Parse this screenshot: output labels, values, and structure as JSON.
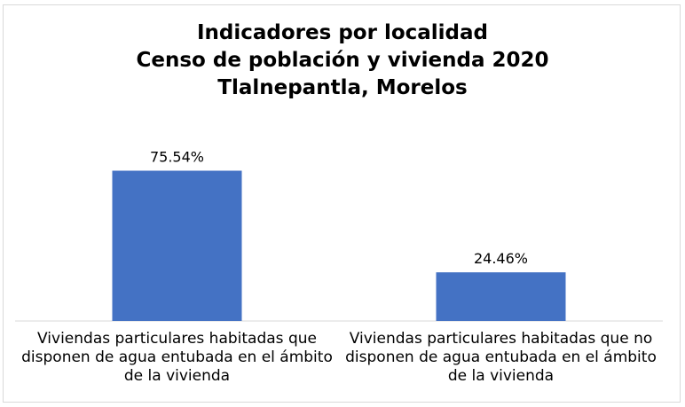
{
  "chart_data": {
    "type": "bar",
    "title_lines": [
      "Indicadores por localidad",
      "Censo de población y vivienda 2020",
      "Tlalnepantla, Morelos"
    ],
    "categories": [
      "Viviendas particulares habitadas que disponen de agua entubada en el ámbito de la vivienda",
      "Viviendas particulares habitadas que no disponen de agua entubada en el ámbito de la vivienda"
    ],
    "category_lines": [
      [
        "Viviendas particulares habitadas que",
        "disponen de agua entubada en el ámbito",
        "de la vivienda"
      ],
      [
        "Viviendas particulares habitadas que no",
        "disponen de agua entubada en el ámbito",
        "de la vivienda"
      ]
    ],
    "values": [
      75.54,
      24.46
    ],
    "data_labels": [
      "75.54%",
      "24.46%"
    ],
    "ylim": [
      0,
      100
    ],
    "bar_color": "#4472c4",
    "grid": false,
    "legend": "none"
  }
}
